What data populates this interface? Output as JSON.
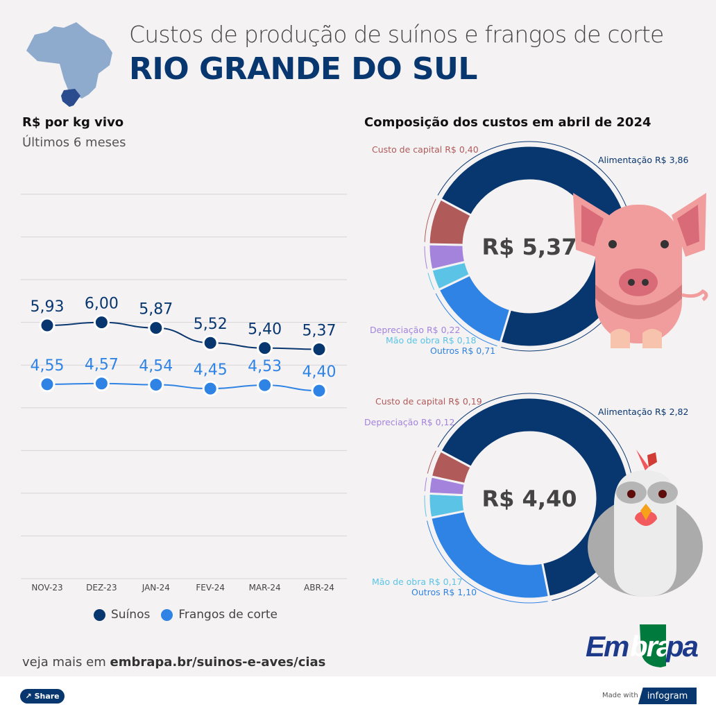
{
  "header": {
    "title": "Custos de produção de suínos e frangos de corte",
    "region": "RIO GRANDE DO SUL"
  },
  "line_section": {
    "unit": "R$ por kg vivo",
    "period": "Últimos 6 meses"
  },
  "composition_section": {
    "title": "Composição dos custos em abril de 2024"
  },
  "colors": {
    "background": "#f4f2f3",
    "navy": "#08366f",
    "blue": "#2f83e4",
    "light_blue": "#5bc4e6",
    "purple": "#a383dc",
    "red": "#b05a59"
  },
  "chart_data": [
    {
      "type": "line",
      "categories": [
        "NOV-23",
        "DEZ-23",
        "JAN-24",
        "FEV-24",
        "MAR-24",
        "ABR-24"
      ],
      "series": [
        {
          "name": "Suínos",
          "color": "#08366f",
          "values": [
            5.93,
            6.0,
            5.87,
            5.52,
            5.4,
            5.37
          ],
          "labels": [
            "5,93",
            "6,00",
            "5,87",
            "5,52",
            "5,40",
            "5,37"
          ]
        },
        {
          "name": "Frangos de corte",
          "color": "#2f83e4",
          "values": [
            4.55,
            4.57,
            4.54,
            4.45,
            4.53,
            4.4
          ],
          "labels": [
            "4,55",
            "4,57",
            "4,54",
            "4,45",
            "4,53",
            "4,40"
          ]
        }
      ],
      "ylim": [
        0,
        9
      ],
      "grid": true,
      "legend": "bottom"
    },
    {
      "type": "pie",
      "variant": "donut",
      "center_label": "R$ 5,37",
      "slices": [
        {
          "label": "Alimentação R$ 3,86",
          "value": 3.86,
          "color": "#08366f"
        },
        {
          "label": "Outros R$ 0,71",
          "value": 0.71,
          "color": "#2f83e4"
        },
        {
          "label": "Mão de obra R$ 0,18",
          "value": 0.18,
          "color": "#5bc4e6"
        },
        {
          "label": "Depreciação R$ 0,22",
          "value": 0.22,
          "color": "#a383dc"
        },
        {
          "label": "Custo de capital R$ 0,40",
          "value": 0.4,
          "color": "#b05a59"
        }
      ]
    },
    {
      "type": "pie",
      "variant": "donut",
      "center_label": "R$ 4,40",
      "slices": [
        {
          "label": "Alimentação R$ 2,82",
          "value": 2.82,
          "color": "#08366f"
        },
        {
          "label": "Outros R$ 1,10",
          "value": 1.1,
          "color": "#2f83e4"
        },
        {
          "label": "Mão de obra R$ 0,17",
          "value": 0.17,
          "color": "#5bc4e6"
        },
        {
          "label": "Depreciação R$ 0,12",
          "value": 0.12,
          "color": "#a383dc"
        },
        {
          "label": "Custo de capital R$ 0,19",
          "value": 0.19,
          "color": "#b05a59"
        }
      ]
    }
  ],
  "footer": {
    "more_prefix": "veja mais em",
    "more_link": "embrapa.br/suinos-e-aves/cias",
    "logo": "Embrapa",
    "share_label": "Share",
    "made_with": "Made with",
    "infogram": "infogram"
  },
  "icons": {
    "map": "brazil-map-icon",
    "pig": "pig-illustration",
    "chicken": "chicken-illustration",
    "share": "share-icon"
  }
}
